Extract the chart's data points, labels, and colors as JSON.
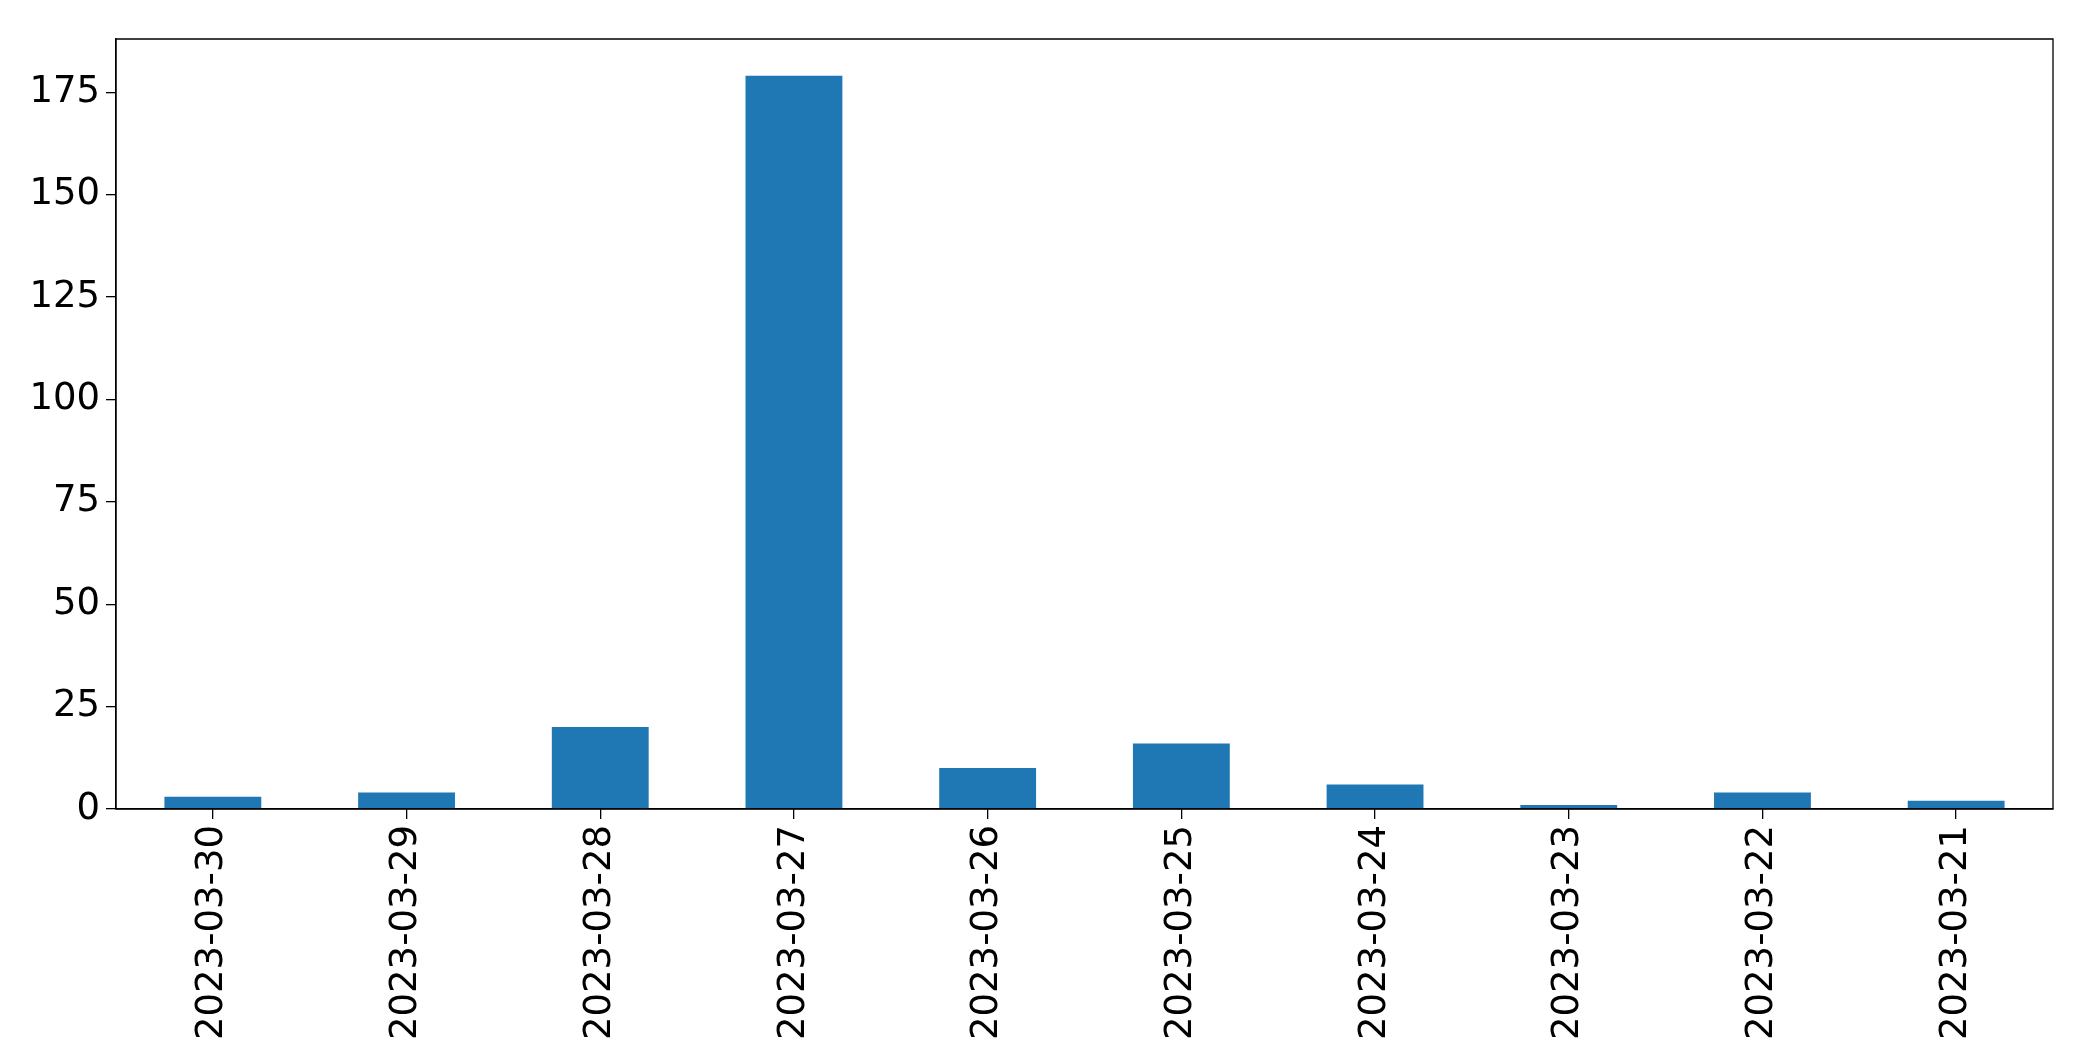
{
  "chart_data": {
    "type": "bar",
    "categories": [
      "2023-03-30",
      "2023-03-29",
      "2023-03-28",
      "2023-03-27",
      "2023-03-26",
      "2023-03-25",
      "2023-03-24",
      "2023-03-23",
      "2023-03-22",
      "2023-03-21"
    ],
    "values": [
      3,
      4,
      20,
      179,
      10,
      16,
      6,
      1,
      4,
      2
    ],
    "color": "#1f77b4",
    "ylim": [
      0,
      188
    ],
    "yticks": [
      0,
      25,
      50,
      75,
      100,
      125,
      150,
      175
    ]
  }
}
